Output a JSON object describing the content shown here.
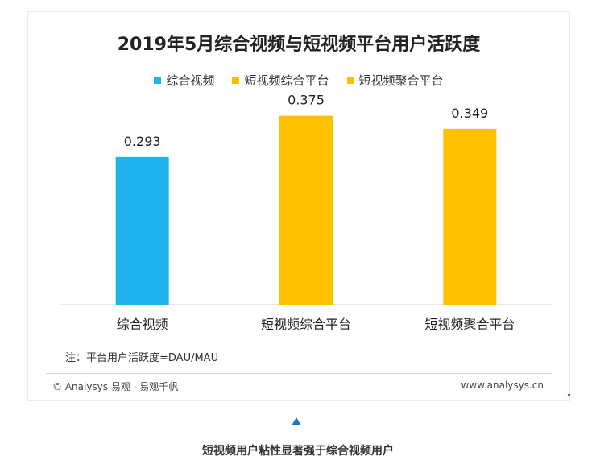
{
  "chart_data": {
    "type": "bar",
    "title": "2019年5月综合视频与短视频平台用户活跃度",
    "categories": [
      "综合视频",
      "短视频综合平台",
      "短视频聚合平台"
    ],
    "values": [
      0.293,
      0.375,
      0.349
    ],
    "value_labels": [
      "0.293",
      "0.375",
      "0.349"
    ],
    "colors": [
      "#1EB2EE",
      "#FFC000",
      "#FFC000"
    ],
    "legend": [
      {
        "label": "综合视频",
        "color": "#1EB2EE"
      },
      {
        "label": "短视频综合平台",
        "color": "#FFC000"
      },
      {
        "label": "短视频聚合平台",
        "color": "#FFC000"
      }
    ],
    "legend_position": "top-center",
    "ylim": [
      0,
      0.4
    ],
    "grid": false
  },
  "note": "注：平台用户活跃度=DAU/MAU",
  "footer": {
    "source": "© Analysys 易观 · 易观千帆",
    "website": "www.analysys.cn"
  },
  "caption": "短视频用户粘性显著强于综合视频用户"
}
